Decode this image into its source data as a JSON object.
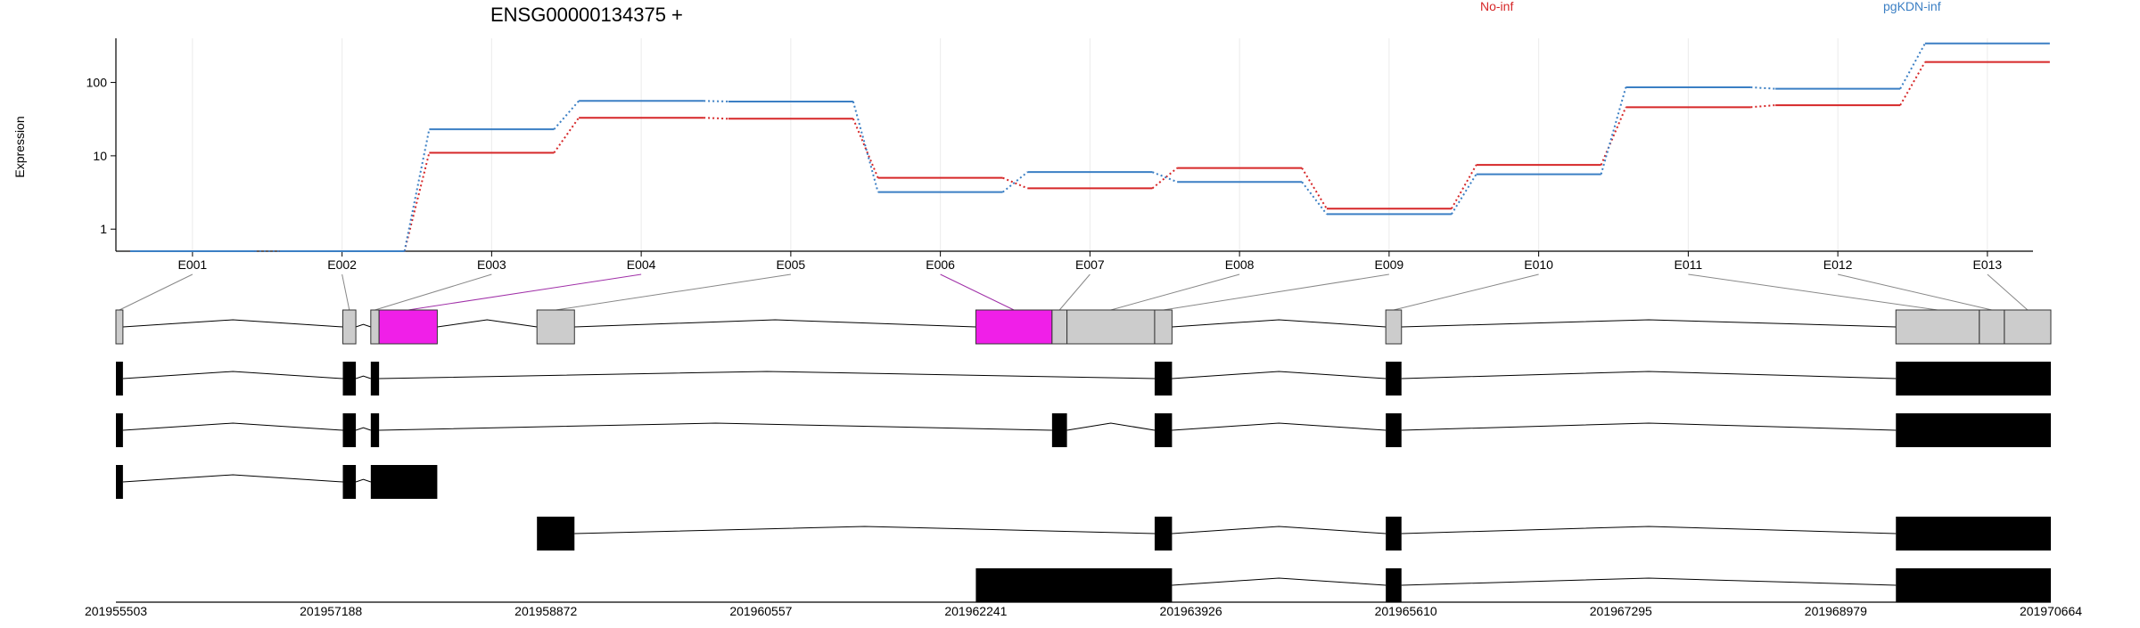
{
  "chart_data": {
    "type": "line",
    "title": "ENSG00000134375 +",
    "ylabel": "Expression",
    "yscale": "log",
    "ylim": [
      0.5,
      400
    ],
    "yticks": [
      1,
      10,
      100
    ],
    "legend_placement": "top",
    "grid": "vertical",
    "colors": {
      "No-inf": "#d62728",
      "pgKDN-inf": "#3b7fc4",
      "highlight": "#f01fe8",
      "exon": "#cccccc",
      "transcript": "#000000"
    },
    "categories": [
      "E001",
      "E002",
      "E003",
      "E004",
      "E005",
      "E006",
      "E007",
      "E008",
      "E009",
      "E010",
      "E011",
      "E012",
      "E013"
    ],
    "series": [
      {
        "name": "No-inf",
        "values": [
          0.5,
          0.5,
          11,
          33,
          32,
          5,
          3.6,
          6.8,
          1.9,
          7.5,
          46,
          49,
          190
        ]
      },
      {
        "name": "pgKDN-inf",
        "values": [
          0.5,
          0.5,
          23,
          56,
          55,
          3.2,
          6,
          4.4,
          1.6,
          5.6,
          86,
          82,
          340
        ]
      }
    ],
    "gene_model": {
      "start": 201955503,
      "end": 201970664,
      "genomic_ticks": [
        201955503,
        201957188,
        201958872,
        201960557,
        201962241,
        201963926,
        201965610,
        201967295,
        201968979,
        201970664
      ],
      "exons": [
        {
          "id": "E001",
          "start": 201955503,
          "end": 201955558,
          "highlight": false
        },
        {
          "id": "E002",
          "start": 201957281,
          "end": 201957383,
          "highlight": false
        },
        {
          "id": "E003",
          "start": 201957500,
          "end": 201957565,
          "highlight": false
        },
        {
          "id": "E004",
          "start": 201957565,
          "end": 201958021,
          "highlight": true
        },
        {
          "id": "E005",
          "start": 201958802,
          "end": 201959096,
          "highlight": false
        },
        {
          "id": "E006",
          "start": 201962241,
          "end": 201962838,
          "highlight": true
        },
        {
          "id": "E007",
          "start": 201962838,
          "end": 201962955,
          "highlight": false
        },
        {
          "id": "E008",
          "start": 201962955,
          "end": 201963642,
          "highlight": false
        },
        {
          "id": "E009",
          "start": 201963642,
          "end": 201963778,
          "highlight": false
        },
        {
          "id": "E010",
          "start": 201965453,
          "end": 201965576,
          "highlight": false
        },
        {
          "id": "E011",
          "start": 201969450,
          "end": 201970104,
          "highlight": false
        },
        {
          "id": "E012",
          "start": 201970104,
          "end": 201970300,
          "highlight": false
        },
        {
          "id": "E013",
          "start": 201970300,
          "end": 201970664,
          "highlight": false
        }
      ],
      "transcripts": [
        [
          [
            201955503,
            201955558
          ],
          [
            201957281,
            201957383
          ],
          [
            201957500,
            201957565
          ],
          [
            201963642,
            201963778
          ],
          [
            201965453,
            201965576
          ],
          [
            201969450,
            201970664
          ]
        ],
        [
          [
            201955503,
            201955558
          ],
          [
            201957281,
            201957383
          ],
          [
            201957500,
            201957565
          ],
          [
            201962838,
            201962955
          ],
          [
            201963642,
            201963778
          ],
          [
            201965453,
            201965576
          ],
          [
            201969450,
            201970664
          ]
        ],
        [
          [
            201955503,
            201955558
          ],
          [
            201957281,
            201957383
          ],
          [
            201957500,
            201958021
          ]
        ],
        [
          [
            201958802,
            201959096
          ],
          [
            201963642,
            201963778
          ],
          [
            201965453,
            201965576
          ],
          [
            201969450,
            201970664
          ]
        ],
        [
          [
            201962241,
            201963778
          ],
          [
            201965453,
            201965576
          ],
          [
            201969450,
            201970664
          ]
        ]
      ]
    }
  }
}
